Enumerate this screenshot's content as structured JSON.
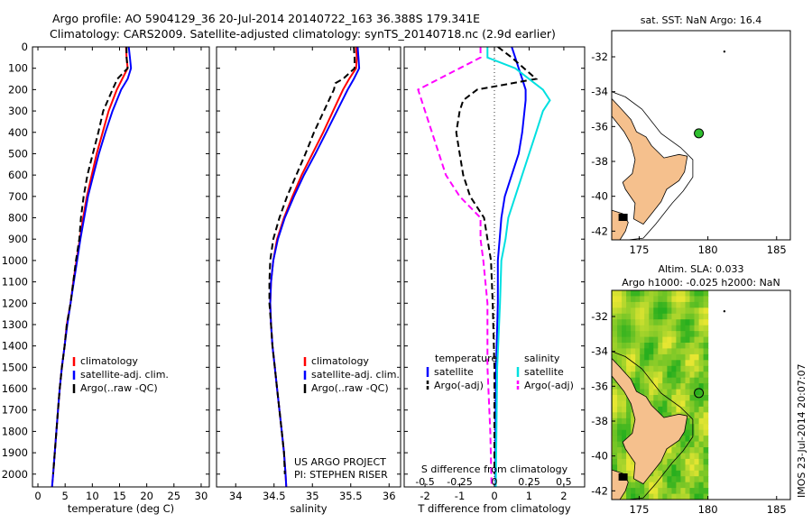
{
  "header": {
    "line1": "Argo profile: AO 5904129_36 20-Jul-2014 20140722_163 36.388S 179.341E",
    "line2": "Climatology: CARS2009. Satellite-adjusted climatology: synTS_20140718.nc (2.9d earlier)"
  },
  "colors": {
    "climatology": "#ff0000",
    "satellite": "#0000ff",
    "argo": "#000000",
    "sat_diff_T": "#0000ff",
    "argo_diff_T": "#000000",
    "sat_diff_S": "#00e0e0",
    "argo_diff_S": "#ff00ff",
    "land": "#f5c08d",
    "argo_marker": "#2fbf2f"
  },
  "watermark": "IMOS 23-Jul-2014 20:07:07",
  "chart_data": [
    {
      "type": "line",
      "id": "temperature",
      "xlabel": "temperature (deg C)",
      "ylabel": "",
      "xlim": [
        -1,
        31.5
      ],
      "ylim": [
        2060,
        0
      ],
      "xticks": [
        0,
        5,
        10,
        15,
        20,
        25,
        30
      ],
      "yticks": [
        0,
        100,
        200,
        300,
        400,
        500,
        600,
        700,
        800,
        900,
        1000,
        1100,
        1200,
        1300,
        1400,
        1500,
        1600,
        1700,
        1800,
        1900,
        2000
      ],
      "legend": [
        "climatology",
        "satellite-adj. clim.",
        "Argo(..raw -QC)"
      ],
      "legend_position": "lower-left",
      "series": [
        {
          "name": "climatology",
          "style": "solid",
          "color": "#ff0000",
          "points": [
            [
              16.2,
              0
            ],
            [
              16.3,
              50
            ],
            [
              16.5,
              100
            ],
            [
              15.5,
              150
            ],
            [
              14.5,
              200
            ],
            [
              13.0,
              300
            ],
            [
              11.9,
              400
            ],
            [
              10.8,
              500
            ],
            [
              9.9,
              600
            ],
            [
              9.0,
              700
            ],
            [
              8.3,
              800
            ],
            [
              7.7,
              900
            ],
            [
              7.1,
              1000
            ],
            [
              6.5,
              1100
            ],
            [
              6.0,
              1200
            ],
            [
              5.3,
              1300
            ],
            [
              4.9,
              1400
            ],
            [
              4.4,
              1500
            ],
            [
              4.0,
              1600
            ],
            [
              3.7,
              1700
            ],
            [
              3.4,
              1800
            ],
            [
              3.1,
              1900
            ],
            [
              2.8,
              2000
            ],
            [
              2.6,
              2060
            ]
          ]
        },
        {
          "name": "satellite-adj. clim.",
          "style": "solid",
          "color": "#0000ff",
          "points": [
            [
              16.7,
              0
            ],
            [
              16.9,
              50
            ],
            [
              17.1,
              100
            ],
            [
              16.5,
              150
            ],
            [
              15.3,
              200
            ],
            [
              13.7,
              300
            ],
            [
              12.4,
              400
            ],
            [
              11.2,
              500
            ],
            [
              10.2,
              600
            ],
            [
              9.2,
              700
            ],
            [
              8.5,
              800
            ],
            [
              7.8,
              900
            ],
            [
              7.2,
              1000
            ],
            [
              6.6,
              1100
            ],
            [
              6.0,
              1200
            ],
            [
              5.4,
              1300
            ],
            [
              4.9,
              1400
            ],
            [
              4.4,
              1500
            ],
            [
              4.0,
              1600
            ],
            [
              3.7,
              1700
            ],
            [
              3.4,
              1800
            ],
            [
              3.1,
              1900
            ],
            [
              2.8,
              2000
            ],
            [
              2.6,
              2060
            ]
          ]
        },
        {
          "name": "Argo(..raw -QC)",
          "style": "dashed",
          "color": "#000000",
          "points": [
            [
              16.3,
              0
            ],
            [
              16.3,
              50
            ],
            [
              16.5,
              100
            ],
            [
              14.6,
              150
            ],
            [
              13.7,
              200
            ],
            [
              12.0,
              300
            ],
            [
              11.1,
              400
            ],
            [
              10.1,
              500
            ],
            [
              9.1,
              600
            ],
            [
              8.4,
              700
            ],
            [
              7.9,
              800
            ],
            [
              7.6,
              900
            ],
            [
              7.0,
              1000
            ],
            [
              6.5,
              1100
            ],
            [
              6.0,
              1200
            ],
            [
              5.3,
              1300
            ],
            [
              4.9,
              1400
            ],
            [
              4.4,
              1500
            ],
            [
              4.0,
              1600
            ],
            [
              3.7,
              1700
            ],
            [
              3.4,
              1800
            ],
            [
              3.1,
              1900
            ],
            [
              2.8,
              2000
            ]
          ]
        }
      ]
    },
    {
      "type": "line",
      "id": "salinity",
      "xlabel": "salinity",
      "ylabel": "",
      "xlim": [
        33.75,
        36.15
      ],
      "ylim": [
        2060,
        0
      ],
      "xticks": [
        34,
        34.5,
        35,
        35.5,
        36
      ],
      "legend": [
        "climatology",
        "satellite-adj. clim.",
        "Argo(..raw -QC)"
      ],
      "legend_position": "lower-right",
      "annotation": [
        "US ARGO PROJECT",
        "PI: STEPHEN RISER"
      ],
      "series": [
        {
          "name": "climatology",
          "style": "solid",
          "color": "#ff0000",
          "points": [
            [
              35.57,
              0
            ],
            [
              35.58,
              50
            ],
            [
              35.57,
              100
            ],
            [
              35.48,
              150
            ],
            [
              35.4,
              200
            ],
            [
              35.27,
              300
            ],
            [
              35.14,
              400
            ],
            [
              35.0,
              500
            ],
            [
              34.86,
              600
            ],
            [
              34.74,
              700
            ],
            [
              34.63,
              800
            ],
            [
              34.54,
              900
            ],
            [
              34.49,
              1000
            ],
            [
              34.46,
              1100
            ],
            [
              34.45,
              1200
            ],
            [
              34.46,
              1300
            ],
            [
              34.48,
              1400
            ],
            [
              34.51,
              1500
            ],
            [
              34.54,
              1600
            ],
            [
              34.57,
              1700
            ],
            [
              34.6,
              1800
            ],
            [
              34.63,
              1900
            ],
            [
              34.65,
              2000
            ],
            [
              34.66,
              2060
            ]
          ]
        },
        {
          "name": "satellite-adj. clim.",
          "style": "solid",
          "color": "#0000ff",
          "points": [
            [
              35.59,
              0
            ],
            [
              35.6,
              50
            ],
            [
              35.61,
              100
            ],
            [
              35.54,
              150
            ],
            [
              35.46,
              200
            ],
            [
              35.32,
              300
            ],
            [
              35.18,
              400
            ],
            [
              35.04,
              500
            ],
            [
              34.89,
              600
            ],
            [
              34.76,
              700
            ],
            [
              34.64,
              800
            ],
            [
              34.55,
              900
            ],
            [
              34.49,
              1000
            ],
            [
              34.46,
              1100
            ],
            [
              34.45,
              1200
            ],
            [
              34.46,
              1300
            ],
            [
              34.48,
              1400
            ],
            [
              34.51,
              1500
            ],
            [
              34.54,
              1600
            ],
            [
              34.57,
              1700
            ],
            [
              34.6,
              1800
            ],
            [
              34.63,
              1900
            ],
            [
              34.65,
              2000
            ],
            [
              34.66,
              2060
            ]
          ]
        },
        {
          "name": "Argo(..raw -QC)",
          "style": "dashed",
          "color": "#000000",
          "points": [
            [
              35.54,
              0
            ],
            [
              35.55,
              50
            ],
            [
              35.55,
              100
            ],
            [
              35.4,
              150
            ],
            [
              35.3,
              170
            ],
            [
              35.28,
              200
            ],
            [
              35.15,
              300
            ],
            [
              35.02,
              400
            ],
            [
              34.91,
              500
            ],
            [
              34.79,
              600
            ],
            [
              34.67,
              700
            ],
            [
              34.57,
              800
            ],
            [
              34.49,
              900
            ],
            [
              34.45,
              1000
            ],
            [
              34.44,
              1100
            ],
            [
              34.44,
              1200
            ],
            [
              34.46,
              1300
            ],
            [
              34.48,
              1400
            ],
            [
              34.51,
              1500
            ],
            [
              34.54,
              1600
            ],
            [
              34.57,
              1700
            ],
            [
              34.6,
              1800
            ],
            [
              34.63,
              1900
            ],
            [
              34.64,
              2000
            ]
          ]
        }
      ]
    },
    {
      "type": "line",
      "id": "difference",
      "xlabel": "T difference from climatology",
      "xlabel_top": "S difference from climatology",
      "xlim": [
        -2.6,
        2.6
      ],
      "ylim": [
        2060,
        0
      ],
      "xticks": [
        -2,
        -1,
        0,
        1,
        2
      ],
      "xticks_S": [
        "-0.5",
        "-0.25",
        "0",
        "0.25",
        "0.5"
      ],
      "legend_T_title": "temperature",
      "legend_S_title": "salinity",
      "legend": [
        "satellite",
        "Argo(-adj)",
        "satellite",
        "Argo(-adj)"
      ],
      "legend_position": "lower-center",
      "series": [
        {
          "name": "T satellite",
          "style": "solid",
          "color": "#0000ff",
          "points": [
            [
              0.5,
              0
            ],
            [
              0.6,
              50
            ],
            [
              0.7,
              100
            ],
            [
              0.8,
              150
            ],
            [
              0.9,
              200
            ],
            [
              0.9,
              250
            ],
            [
              0.8,
              400
            ],
            [
              0.7,
              500
            ],
            [
              0.5,
              600
            ],
            [
              0.3,
              700
            ],
            [
              0.2,
              800
            ],
            [
              0.15,
              900
            ],
            [
              0.1,
              1000
            ],
            [
              0.1,
              1200
            ],
            [
              0.05,
              1500
            ],
            [
              0.03,
              1800
            ],
            [
              0.03,
              2060
            ]
          ]
        },
        {
          "name": "T Argo(-adj)",
          "style": "dashed",
          "color": "#000000",
          "points": [
            [
              0.1,
              0
            ],
            [
              0.5,
              50
            ],
            [
              1.2,
              150
            ],
            [
              -0.5,
              200
            ],
            [
              -0.9,
              250
            ],
            [
              -1.0,
              300
            ],
            [
              -1.1,
              400
            ],
            [
              -1.0,
              500
            ],
            [
              -0.9,
              600
            ],
            [
              -0.7,
              700
            ],
            [
              -0.3,
              800
            ],
            [
              -0.2,
              900
            ],
            [
              -0.1,
              1000
            ],
            [
              -0.05,
              1200
            ],
            [
              0,
              1500
            ],
            [
              0,
              2000
            ]
          ]
        },
        {
          "name": "S satellite",
          "style": "solid",
          "color": "#00e0e0",
          "points": [
            [
              -0.05,
              0
            ],
            [
              -0.05,
              50
            ],
            [
              0.15,
              100
            ],
            [
              0.35,
              200
            ],
            [
              0.4,
              250
            ],
            [
              0.35,
              300
            ],
            [
              0.3,
              400
            ],
            [
              0.25,
              500
            ],
            [
              0.2,
              600
            ],
            [
              0.15,
              700
            ],
            [
              0.1,
              800
            ],
            [
              0.08,
              900
            ],
            [
              0.05,
              1000
            ],
            [
              0.04,
              1200
            ],
            [
              0.02,
              1500
            ],
            [
              0.01,
              2060
            ]
          ]
        },
        {
          "name": "S Argo(-adj)",
          "style": "dashed",
          "color": "#ff00ff",
          "points": [
            [
              -0.1,
              0
            ],
            [
              -0.1,
              50
            ],
            [
              -0.25,
              100
            ],
            [
              -0.55,
              200
            ],
            [
              -0.5,
              300
            ],
            [
              -0.45,
              400
            ],
            [
              -0.4,
              500
            ],
            [
              -0.35,
              600
            ],
            [
              -0.25,
              700
            ],
            [
              -0.1,
              800
            ],
            [
              -0.1,
              900
            ],
            [
              -0.08,
              1000
            ],
            [
              -0.05,
              1200
            ],
            [
              -0.05,
              1500
            ],
            [
              -0.03,
              1800
            ],
            [
              -0.02,
              2060
            ]
          ]
        }
      ]
    },
    {
      "type": "map",
      "id": "sst_map",
      "title": "sat. SST: NaN Argo: 16.4",
      "xlim": [
        173,
        186
      ],
      "ylim": [
        -42.5,
        -30.5
      ],
      "xticks": [
        175,
        180,
        185
      ],
      "yticks": [
        -32,
        -34,
        -36,
        -38,
        -40,
        -42
      ],
      "argo_position": [
        179.341,
        -36.388
      ]
    },
    {
      "type": "heatmap",
      "id": "sla_map",
      "title": "Altim. SLA: 0.033",
      "subtitle": "Argo h1000: -0.025 h2000: NaN",
      "xlim": [
        173,
        186
      ],
      "ylim": [
        -42.5,
        -30.5
      ],
      "xticks": [
        175,
        180,
        185
      ],
      "yticks": [
        -32,
        -34,
        -36,
        -38,
        -40,
        -42
      ],
      "argo_position": [
        179.341,
        -36.388
      ],
      "data_extent_lon": [
        173,
        180
      ]
    }
  ]
}
